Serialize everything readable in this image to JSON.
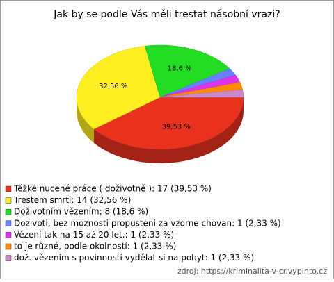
{
  "chart_data": {
    "type": "pie",
    "title": "Jak by se podle Vás měli trestat násobní vrazi?",
    "categories": [
      "Těžké nucené práce ( doživotně ): 17 (39,53 %)",
      "Trestem smrti: 14 (32,56 %)",
      "Doživotním vězením: 8 (18,6 %)",
      "Dozivoti, bez moznosti propusteni za vzorne chovan: 1 (2,33 %)",
      "Vězení tak na 15 až 20 let.: 1 (2,33 %)",
      "to je různé, podle okolností: 1 (2,33 %)",
      "dož. vězením s povinností vydělat si na pobyt: 1 (2,33 %)"
    ],
    "values": [
      17,
      14,
      8,
      1,
      1,
      1,
      1
    ],
    "value_labels": [
      "39,53 %",
      "32,56 %",
      "18,6 %",
      null,
      null,
      null,
      null
    ],
    "colors": [
      "#e8321e",
      "#ffee22",
      "#22dd22",
      "#6680ff",
      "#dd33ee",
      "#ff8c00",
      "#cc88cc"
    ],
    "source": "zdroj: https://kriminalita-v-cr.vyplnto.cz"
  }
}
